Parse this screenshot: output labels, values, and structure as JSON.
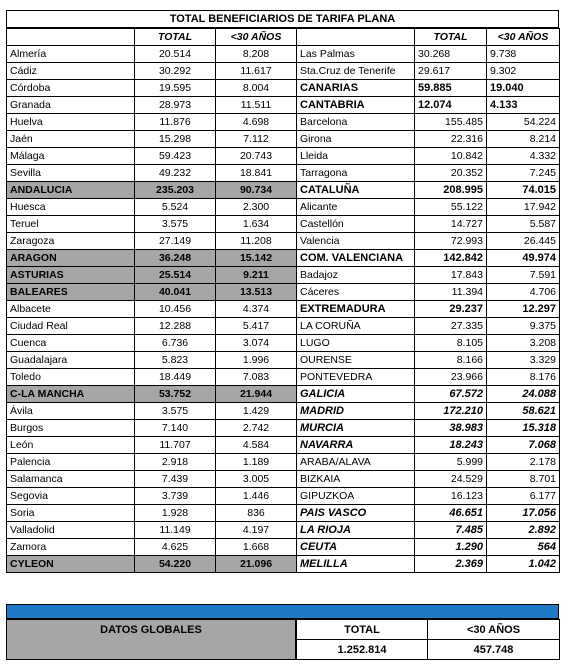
{
  "title": "TOTAL BENEFICIARIOS DE TARIFA PLANA",
  "headers": {
    "total": "TOTAL",
    "under30": "<30 AÑOS"
  },
  "left_rows": [
    {
      "name": "Almería",
      "total": "20.514",
      "u30": "8.208",
      "style": "normal"
    },
    {
      "name": "Cádiz",
      "total": "30.292",
      "u30": "11.617",
      "style": "normal"
    },
    {
      "name": "Córdoba",
      "total": "19.595",
      "u30": "8.004",
      "style": "normal"
    },
    {
      "name": "Granada",
      "total": "28.973",
      "u30": "11.511",
      "style": "normal"
    },
    {
      "name": "Huelva",
      "total": "11.876",
      "u30": "4.698",
      "style": "normal"
    },
    {
      "name": "Jaén",
      "total": "15.298",
      "u30": "7.112",
      "style": "normal"
    },
    {
      "name": "Málaga",
      "total": "59.423",
      "u30": "20.743",
      "style": "normal"
    },
    {
      "name": "Sevilla",
      "total": "49.232",
      "u30": "18.841",
      "style": "normal"
    },
    {
      "name": "ANDALUCIA",
      "total": "235.203",
      "u30": "90.734",
      "style": "sum"
    },
    {
      "name": "Huesca",
      "total": "5.524",
      "u30": "2.300",
      "style": "normal"
    },
    {
      "name": "Teruel",
      "total": "3.575",
      "u30": "1.634",
      "style": "normal"
    },
    {
      "name": "Zaragoza",
      "total": "27.149",
      "u30": "11.208",
      "style": "normal"
    },
    {
      "name": "ARAGON",
      "total": "36.248",
      "u30": "15.142",
      "style": "sum"
    },
    {
      "name": "ASTURIAS",
      "total": "25.514",
      "u30": "9.211",
      "style": "sum"
    },
    {
      "name": "BALEARES",
      "total": "40.041",
      "u30": "13.513",
      "style": "sum"
    },
    {
      "name": "Albacete",
      "total": "10.456",
      "u30": "4.374",
      "style": "normal"
    },
    {
      "name": "Ciudad Real",
      "total": "12.288",
      "u30": "5.417",
      "style": "normal"
    },
    {
      "name": "Cuenca",
      "total": "6.736",
      "u30": "3.074",
      "style": "normal"
    },
    {
      "name": "Guadalajara",
      "total": "5.823",
      "u30": "1.996",
      "style": "normal"
    },
    {
      "name": "Toledo",
      "total": "18.449",
      "u30": "7.083",
      "style": "normal"
    },
    {
      "name": "C-LA MANCHA",
      "total": "53.752",
      "u30": "21.944",
      "style": "sum"
    },
    {
      "name": "Ávila",
      "total": "3.575",
      "u30": "1.429",
      "style": "normal"
    },
    {
      "name": "Burgos",
      "total": "7.140",
      "u30": "2.742",
      "style": "normal"
    },
    {
      "name": "León",
      "total": "11.707",
      "u30": "4.584",
      "style": "normal"
    },
    {
      "name": "Palencia",
      "total": "2.918",
      "u30": "1.189",
      "style": "normal"
    },
    {
      "name": "Salamanca",
      "total": "7.439",
      "u30": "3.005",
      "style": "normal"
    },
    {
      "name": "Segovia",
      "total": "3.739",
      "u30": "1.446",
      "style": "normal"
    },
    {
      "name": "Soria",
      "total": "1.928",
      "u30": "836",
      "style": "normal"
    },
    {
      "name": "Valladolid",
      "total": "11.149",
      "u30": "4.197",
      "style": "normal"
    },
    {
      "name": "Zamora",
      "total": "4.625",
      "u30": "1.668",
      "style": "normal"
    },
    {
      "name": "CYLEON",
      "total": "54.220",
      "u30": "21.096",
      "style": "sum"
    }
  ],
  "right_rows": [
    {
      "name": "Las Palmas",
      "total": "30.268",
      "u30": "9.738",
      "style": "normal-left"
    },
    {
      "name": "Sta.Cruz de Tenerife",
      "total": "29.617",
      "u30": "9.302",
      "style": "normal-left"
    },
    {
      "name": "CANARIAS",
      "total": "59.885",
      "u30": "19.040",
      "style": "bold-left"
    },
    {
      "name": "CANTABRIA",
      "total": "12.074",
      "u30": "4.133",
      "style": "bold-left"
    },
    {
      "name": "Barcelona",
      "total": "155.485",
      "u30": "54.224",
      "style": "normal"
    },
    {
      "name": "Girona",
      "total": "22.316",
      "u30": "8.214",
      "style": "normal"
    },
    {
      "name": "Lleida",
      "total": "10.842",
      "u30": "4.332",
      "style": "normal"
    },
    {
      "name": "Tarragona",
      "total": "20.352",
      "u30": "7.245",
      "style": "normal"
    },
    {
      "name": "CATALUÑA",
      "total": "208.995",
      "u30": "74.015",
      "style": "bold"
    },
    {
      "name": "Alicante",
      "total": "55.122",
      "u30": "17.942",
      "style": "normal"
    },
    {
      "name": "Castellón",
      "total": "14.727",
      "u30": "5.587",
      "style": "normal"
    },
    {
      "name": "Valencia",
      "total": "72.993",
      "u30": "26.445",
      "style": "normal"
    },
    {
      "name": "COM. VALENCIANA",
      "total": "142.842",
      "u30": "49.974",
      "style": "bold"
    },
    {
      "name": "Badajoz",
      "total": "17.843",
      "u30": "7.591",
      "style": "normal"
    },
    {
      "name": "Cáceres",
      "total": "11.394",
      "u30": "4.706",
      "style": "normal"
    },
    {
      "name": "EXTREMADURA",
      "total": "29.237",
      "u30": "12.297",
      "style": "bold"
    },
    {
      "name": "LA CORUÑA",
      "total": "27.335",
      "u30": "9.375",
      "style": "normal"
    },
    {
      "name": "LUGO",
      "total": "8.105",
      "u30": "3.208",
      "style": "normal"
    },
    {
      "name": "OURENSE",
      "total": "8.166",
      "u30": "3.329",
      "style": "normal"
    },
    {
      "name": "PONTEVEDRA",
      "total": "23.966",
      "u30": "8.176",
      "style": "normal"
    },
    {
      "name": "GALICIA",
      "total": "67.572",
      "u30": "24.088",
      "style": "bold-it"
    },
    {
      "name": "MADRID",
      "total": "172.210",
      "u30": "58.621",
      "style": "bold-it"
    },
    {
      "name": "MURCIA",
      "total": "38.983",
      "u30": "15.318",
      "style": "bold-it"
    },
    {
      "name": "NAVARRA",
      "total": "18.243",
      "u30": "7.068",
      "style": "bold-it"
    },
    {
      "name": "ARABA/ALAVA",
      "total": "5.999",
      "u30": "2.178",
      "style": "normal"
    },
    {
      "name": "BIZKAIA",
      "total": "24.529",
      "u30": "8.701",
      "style": "normal"
    },
    {
      "name": "GIPUZKOA",
      "total": "16.123",
      "u30": "6.177",
      "style": "normal"
    },
    {
      "name": "PAIS VASCO",
      "total": "46.651",
      "u30": "17.056",
      "style": "bold-it"
    },
    {
      "name": "LA RIOJA",
      "total": "7.485",
      "u30": "2.892",
      "style": "bold-it"
    },
    {
      "name": "CEUTA",
      "total": "1.290",
      "u30": "564",
      "style": "bold-it"
    },
    {
      "name": "MELILLA",
      "total": "2.369",
      "u30": "1.042",
      "style": "bold-it"
    }
  ],
  "global": {
    "label": "DATOS GLOBALES",
    "total_header": "TOTAL",
    "u30_header": "<30 AÑOS",
    "total": "1.252.814",
    "u30": "457.748"
  }
}
